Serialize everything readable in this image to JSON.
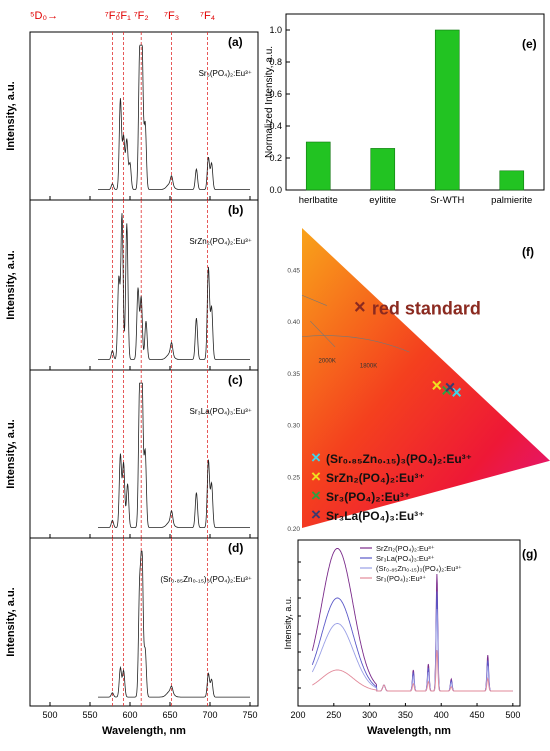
{
  "transition_header": {
    "initial": "⁵D₀→",
    "finals": [
      {
        "label": "⁷F₀",
        "x": 578
      },
      {
        "label": "⁷F₁",
        "x": 592
      },
      {
        "label": "⁷F₂",
        "x": 614
      },
      {
        "label": "⁷F₃",
        "x": 652
      },
      {
        "label": "⁷F₄",
        "x": 697
      }
    ],
    "color": "#e00000"
  },
  "chart_data": [
    {
      "type": "line",
      "panel_label": "(a)",
      "compound": "Sr₃(PO₄)₂:Eu³⁺",
      "ylabel": "Intensity, a.u.",
      "xlim": [
        475,
        760
      ],
      "xticks": [
        500,
        550,
        600,
        650,
        700,
        750
      ],
      "xlabel": "",
      "vlines": [
        578,
        592,
        614,
        652,
        697
      ],
      "peaks": [
        [
          578,
          0.04
        ],
        [
          588,
          0.62
        ],
        [
          592,
          0.36
        ],
        [
          596,
          0.34
        ],
        [
          600,
          0.18
        ],
        [
          612,
          0.88
        ],
        [
          615,
          0.98
        ],
        [
          619,
          0.45
        ],
        [
          652,
          0.06
        ],
        [
          683,
          0.14
        ],
        [
          698,
          0.22
        ],
        [
          702,
          0.18
        ]
      ],
      "baseline": 0.03
    },
    {
      "type": "line",
      "panel_label": "(b)",
      "compound": "SrZn₂(PO₄)₂:Eu³⁺",
      "ylabel": "Intensity, a.u.",
      "xlim": [
        475,
        760
      ],
      "xticks": [
        500,
        550,
        600,
        650,
        700,
        750
      ],
      "xlabel": "",
      "vlines": [
        578,
        592,
        614,
        652,
        697
      ],
      "peaks": [
        [
          578,
          0.06
        ],
        [
          586,
          0.55
        ],
        [
          590,
          0.98
        ],
        [
          596,
          0.92
        ],
        [
          610,
          0.48
        ],
        [
          614,
          0.42
        ],
        [
          620,
          0.26
        ],
        [
          652,
          0.08
        ],
        [
          683,
          0.28
        ],
        [
          698,
          0.62
        ],
        [
          702,
          0.35
        ]
      ],
      "baseline": 0.03
    },
    {
      "type": "line",
      "panel_label": "(c)",
      "compound": "Sr₃La(PO₄)₃:Eu³⁺",
      "ylabel": "Intensity, a.u.",
      "xlim": [
        475,
        760
      ],
      "xticks": [
        500,
        550,
        600,
        650,
        700,
        750
      ],
      "xlabel": "",
      "vlines": [
        578,
        592,
        614,
        652,
        697
      ],
      "peaks": [
        [
          578,
          0.05
        ],
        [
          588,
          0.5
        ],
        [
          592,
          0.44
        ],
        [
          597,
          0.3
        ],
        [
          612,
          0.92
        ],
        [
          615,
          1.0
        ],
        [
          619,
          0.52
        ],
        [
          652,
          0.08
        ],
        [
          683,
          0.24
        ],
        [
          698,
          0.46
        ],
        [
          702,
          0.3
        ]
      ],
      "baseline": 0.03
    },
    {
      "type": "line",
      "panel_label": "(d)",
      "compound": "(Sr₀.₈₅Zn₀.₁₅)₃(PO₄)₂:Eu³⁺",
      "ylabel": "Intensity, a.u.",
      "xlim": [
        475,
        760
      ],
      "xticks": [
        500,
        550,
        600,
        650,
        700,
        750
      ],
      "xlabel": "Wavelength, nm",
      "vlines": [
        578,
        592,
        614,
        652,
        697
      ],
      "peaks": [
        [
          578,
          0.03
        ],
        [
          588,
          0.2
        ],
        [
          592,
          0.18
        ],
        [
          612,
          0.72
        ],
        [
          615,
          0.98
        ],
        [
          619,
          0.32
        ],
        [
          652,
          0.04
        ],
        [
          698,
          0.16
        ],
        [
          702,
          0.12
        ]
      ],
      "baseline": 0.02
    },
    {
      "type": "bar",
      "panel_label": "(e)",
      "categories": [
        "herlbatite",
        "eylitite",
        "Sr-WTH",
        "palmierite"
      ],
      "values": [
        0.3,
        0.26,
        1.0,
        0.12
      ],
      "ylabel": "Normalized Intensity, a.u.",
      "ylim": [
        0.0,
        1.1
      ],
      "yticks": [
        0.0,
        0.2,
        0.4,
        0.6,
        0.8,
        1.0
      ],
      "color": "#22c322"
    },
    {
      "type": "scatter",
      "panel_label": "(f)",
      "xlim": [
        0.4,
        0.7
      ],
      "ylim": [
        0.2,
        0.49
      ],
      "yticks": [
        0.2,
        0.25,
        0.3,
        0.35,
        0.4,
        0.45
      ],
      "ytick_labels": [
        "0.20",
        "0.25",
        "0.30",
        "0.35",
        "0.40",
        "0.45"
      ],
      "triangle": [
        [
          0.4,
          0.49
        ],
        [
          0.7,
          0.265
        ],
        [
          0.4,
          0.2
        ]
      ],
      "planck": [
        {
          "label": "2000K",
          "x": 0.42,
          "y": 0.36
        },
        {
          "label": "1800K",
          "x": 0.47,
          "y": 0.355
        }
      ],
      "red_standard": {
        "label": "red standard",
        "x": 0.47,
        "y": 0.412,
        "color": "#8b2a20"
      },
      "points": [
        {
          "name": "(Sr₀.₈₅Zn₀.₁₅)₃(PO₄)₂:Eu³⁺",
          "x": 0.587,
          "y": 0.33,
          "color": "#40d4e8"
        },
        {
          "name": "SrZn₂(PO₄)₂:Eu³⁺",
          "x": 0.563,
          "y": 0.337,
          "color": "#f0e020"
        },
        {
          "name": "Sr₃(PO₄)₂:Eu³⁺",
          "x": 0.575,
          "y": 0.332,
          "color": "#30a040"
        },
        {
          "name": "Sr₃La(PO₄)₃:Eu³⁺",
          "x": 0.579,
          "y": 0.335,
          "color": "#3a3a70"
        }
      ]
    },
    {
      "type": "line",
      "panel_label": "(g)",
      "xlabel": "Wavelength, nm",
      "ylabel": "Intensity, a.u.",
      "xlim": [
        200,
        510
      ],
      "xticks": [
        200,
        250,
        300,
        350,
        400,
        450,
        500
      ],
      "series": [
        {
          "name": "SrZn₂(PO₄)₂:Eu³⁺",
          "color": "#7a2a8a",
          "scale": 1.0,
          "band": 0.95
        },
        {
          "name": "Sr₃La(PO₄)₃:Eu³⁺",
          "color": "#5a58c8",
          "scale": 0.85,
          "band": 0.62
        },
        {
          "name": "(Sr₀.₈₅Zn₀.₁₅)₃(PO₄)₂:Eu³⁺",
          "color": "#9aa0e6",
          "scale": 0.7,
          "band": 0.45
        },
        {
          "name": "Sr₃(PO₄)₂:Eu³⁺",
          "color": "#e28a9a",
          "scale": 0.35,
          "band": 0.14
        }
      ]
    }
  ]
}
